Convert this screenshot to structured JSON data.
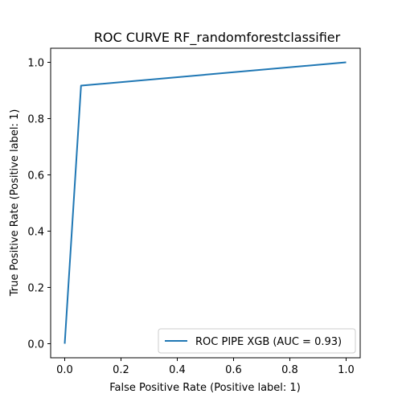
{
  "chart_data": {
    "type": "line",
    "title": "ROC CURVE RF_randomforestclassifier",
    "xlabel": "False Positive Rate (Positive label: 1)",
    "ylabel": "True Positive Rate (Positive label: 1)",
    "xlim": [
      -0.05,
      1.05
    ],
    "ylim": [
      -0.05,
      1.05
    ],
    "x_ticks": [
      0.0,
      0.2,
      0.4,
      0.6,
      0.8,
      1.0
    ],
    "y_ticks": [
      0.0,
      0.2,
      0.4,
      0.6,
      0.8,
      1.0
    ],
    "x_tick_labels": [
      "0.0",
      "0.2",
      "0.4",
      "0.6",
      "0.8",
      "1.0"
    ],
    "y_tick_labels": [
      "0.0",
      "0.2",
      "0.4",
      "0.6",
      "0.8",
      "1.0"
    ],
    "grid": false,
    "legend_position": "lower-right",
    "series": [
      {
        "name": "ROC PIPE XGB (AUC = 0.93)",
        "color": "#1f77b4",
        "x": [
          0.0,
          0.058,
          1.0
        ],
        "y": [
          0.0,
          0.917,
          1.0
        ]
      }
    ]
  }
}
